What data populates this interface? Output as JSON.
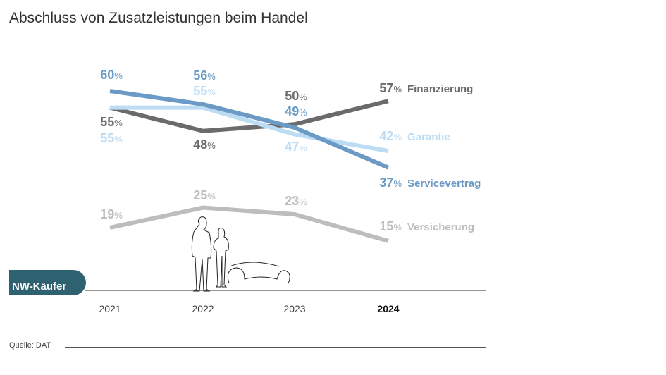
{
  "title": "Abschluss von Zusatzleistungen beim Handel",
  "group_label": "NW-Käufer",
  "source": "Quelle: DAT",
  "chart_data": {
    "type": "line",
    "title": "Abschluss von Zusatzleistungen beim Handel",
    "categories": [
      "2021",
      "2022",
      "2023",
      "2024"
    ],
    "highlight_category": "2024",
    "unit": "%",
    "grid": false,
    "legend": "inline-right",
    "series": [
      {
        "name": "Finanzierung",
        "values": [
          55,
          48,
          50,
          57
        ],
        "color": "#6b6b6b"
      },
      {
        "name": "Garantie",
        "values": [
          55,
          55,
          47,
          42
        ],
        "color": "#bcdcf4"
      },
      {
        "name": "Servicevertrag",
        "values": [
          60,
          56,
          49,
          37
        ],
        "color": "#6a9ac5"
      },
      {
        "name": "Versicherung",
        "values": [
          19,
          25,
          23,
          15
        ],
        "color": "#bdbdbd"
      }
    ]
  }
}
